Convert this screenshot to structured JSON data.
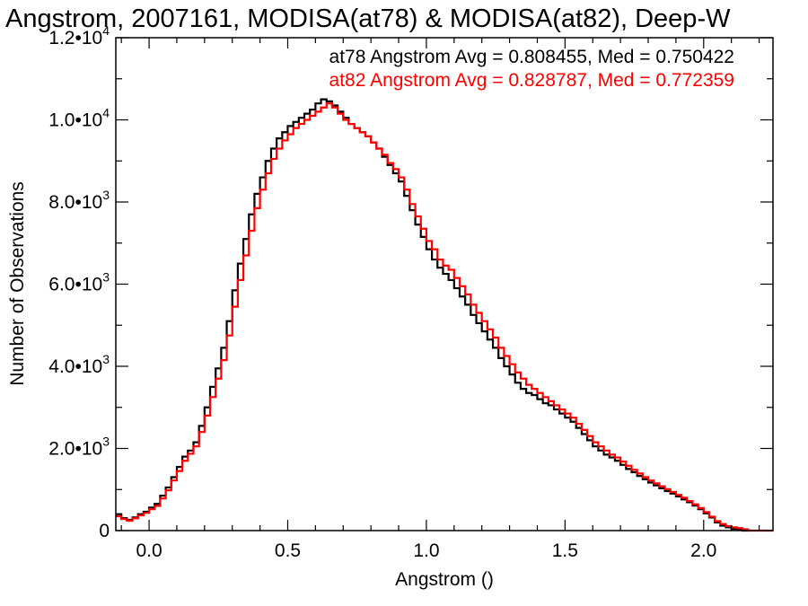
{
  "chart_data": {
    "type": "line",
    "step": true,
    "title": "Angstrom, 2007161, MODISA(at78) & MODISA(at82), Deep-W",
    "xlabel": "Angstrom ()",
    "ylabel": "Number of Observations",
    "xlim": [
      -0.12,
      2.25
    ],
    "ylim": [
      0,
      12000
    ],
    "grid": false,
    "legend_position": "top-right",
    "x_ticks": [
      {
        "value": 0.0,
        "label": "0.0"
      },
      {
        "value": 0.5,
        "label": "0.5"
      },
      {
        "value": 1.0,
        "label": "1.0"
      },
      {
        "value": 1.5,
        "label": "1.5"
      },
      {
        "value": 2.0,
        "label": "2.0"
      }
    ],
    "y_ticks": [
      {
        "value": 0,
        "mantissa": "0",
        "exponent": ""
      },
      {
        "value": 2000,
        "mantissa": "2.0•10",
        "exponent": "3"
      },
      {
        "value": 4000,
        "mantissa": "4.0•10",
        "exponent": "3"
      },
      {
        "value": 6000,
        "mantissa": "6.0•10",
        "exponent": "3"
      },
      {
        "value": 8000,
        "mantissa": "8.0•10",
        "exponent": "3"
      },
      {
        "value": 10000,
        "mantissa": "1.0•10",
        "exponent": "4"
      },
      {
        "value": 12000,
        "mantissa": "1.2•10",
        "exponent": "4"
      }
    ],
    "series": [
      {
        "color": "#000000",
        "label": "at78 Angstrom Avg = 0.808455, Med = 0.750422",
        "points": [
          [
            -0.12,
            400
          ],
          [
            -0.1,
            300
          ],
          [
            -0.08,
            260
          ],
          [
            -0.06,
            320
          ],
          [
            -0.04,
            400
          ],
          [
            -0.02,
            460
          ],
          [
            0.0,
            560
          ],
          [
            0.02,
            650
          ],
          [
            0.04,
            850
          ],
          [
            0.06,
            1050
          ],
          [
            0.08,
            1300
          ],
          [
            0.1,
            1550
          ],
          [
            0.12,
            1800
          ],
          [
            0.14,
            1950
          ],
          [
            0.16,
            2150
          ],
          [
            0.18,
            2550
          ],
          [
            0.2,
            3000
          ],
          [
            0.22,
            3500
          ],
          [
            0.24,
            3950
          ],
          [
            0.26,
            4450
          ],
          [
            0.28,
            5100
          ],
          [
            0.3,
            5850
          ],
          [
            0.32,
            6500
          ],
          [
            0.34,
            7100
          ],
          [
            0.36,
            7700
          ],
          [
            0.38,
            8200
          ],
          [
            0.4,
            8600
          ],
          [
            0.42,
            9000
          ],
          [
            0.44,
            9300
          ],
          [
            0.46,
            9550
          ],
          [
            0.48,
            9700
          ],
          [
            0.5,
            9850
          ],
          [
            0.52,
            9950
          ],
          [
            0.54,
            10050
          ],
          [
            0.56,
            10150
          ],
          [
            0.58,
            10250
          ],
          [
            0.6,
            10400
          ],
          [
            0.62,
            10500
          ],
          [
            0.64,
            10450
          ],
          [
            0.66,
            10350
          ],
          [
            0.68,
            10200
          ],
          [
            0.7,
            10050
          ],
          [
            0.72,
            9900
          ],
          [
            0.74,
            9800
          ],
          [
            0.76,
            9700
          ],
          [
            0.78,
            9600
          ],
          [
            0.8,
            9450
          ],
          [
            0.82,
            9300
          ],
          [
            0.84,
            9100
          ],
          [
            0.86,
            8900
          ],
          [
            0.88,
            8700
          ],
          [
            0.9,
            8500
          ],
          [
            0.92,
            8150
          ],
          [
            0.94,
            7800
          ],
          [
            0.96,
            7450
          ],
          [
            0.98,
            7150
          ],
          [
            1.0,
            6850
          ],
          [
            1.02,
            6600
          ],
          [
            1.04,
            6400
          ],
          [
            1.06,
            6250
          ],
          [
            1.08,
            6100
          ],
          [
            1.1,
            5900
          ],
          [
            1.12,
            5700
          ],
          [
            1.14,
            5500
          ],
          [
            1.16,
            5250
          ],
          [
            1.18,
            5050
          ],
          [
            1.2,
            4850
          ],
          [
            1.22,
            4650
          ],
          [
            1.24,
            4450
          ],
          [
            1.26,
            4200
          ],
          [
            1.28,
            4000
          ],
          [
            1.3,
            3800
          ],
          [
            1.32,
            3600
          ],
          [
            1.34,
            3450
          ],
          [
            1.36,
            3350
          ],
          [
            1.38,
            3300
          ],
          [
            1.4,
            3200
          ],
          [
            1.42,
            3100
          ],
          [
            1.44,
            3050
          ],
          [
            1.46,
            2950
          ],
          [
            1.48,
            2850
          ],
          [
            1.5,
            2750
          ],
          [
            1.52,
            2650
          ],
          [
            1.54,
            2500
          ],
          [
            1.56,
            2350
          ],
          [
            1.58,
            2200
          ],
          [
            1.6,
            2050
          ],
          [
            1.62,
            1950
          ],
          [
            1.64,
            1850
          ],
          [
            1.66,
            1780
          ],
          [
            1.68,
            1700
          ],
          [
            1.7,
            1600
          ],
          [
            1.72,
            1500
          ],
          [
            1.74,
            1420
          ],
          [
            1.76,
            1330
          ],
          [
            1.78,
            1250
          ],
          [
            1.8,
            1170
          ],
          [
            1.82,
            1100
          ],
          [
            1.84,
            1030
          ],
          [
            1.86,
            960
          ],
          [
            1.88,
            900
          ],
          [
            1.9,
            830
          ],
          [
            1.92,
            760
          ],
          [
            1.94,
            690
          ],
          [
            1.96,
            610
          ],
          [
            1.98,
            520
          ],
          [
            2.0,
            420
          ],
          [
            2.02,
            320
          ],
          [
            2.04,
            200
          ],
          [
            2.06,
            120
          ],
          [
            2.08,
            80
          ],
          [
            2.1,
            40
          ],
          [
            2.12,
            20
          ],
          [
            2.14,
            0
          ],
          [
            2.16,
            0
          ]
        ]
      },
      {
        "color": "#ff0000",
        "label": "at82 Angstrom Avg = 0.828787, Med = 0.772359",
        "points": [
          [
            -0.12,
            350
          ],
          [
            -0.1,
            280
          ],
          [
            -0.08,
            240
          ],
          [
            -0.06,
            300
          ],
          [
            -0.04,
            370
          ],
          [
            -0.02,
            430
          ],
          [
            0.0,
            520
          ],
          [
            0.02,
            600
          ],
          [
            0.04,
            780
          ],
          [
            0.06,
            980
          ],
          [
            0.08,
            1220
          ],
          [
            0.1,
            1450
          ],
          [
            0.12,
            1700
          ],
          [
            0.14,
            1870
          ],
          [
            0.16,
            2050
          ],
          [
            0.18,
            2400
          ],
          [
            0.2,
            2800
          ],
          [
            0.22,
            3250
          ],
          [
            0.24,
            3700
          ],
          [
            0.26,
            4150
          ],
          [
            0.28,
            4750
          ],
          [
            0.3,
            5450
          ],
          [
            0.32,
            6100
          ],
          [
            0.34,
            6700
          ],
          [
            0.36,
            7300
          ],
          [
            0.38,
            7850
          ],
          [
            0.4,
            8300
          ],
          [
            0.42,
            8700
          ],
          [
            0.44,
            9050
          ],
          [
            0.46,
            9300
          ],
          [
            0.48,
            9500
          ],
          [
            0.5,
            9650
          ],
          [
            0.52,
            9800
          ],
          [
            0.54,
            9900
          ],
          [
            0.56,
            10000
          ],
          [
            0.58,
            10100
          ],
          [
            0.6,
            10200
          ],
          [
            0.62,
            10300
          ],
          [
            0.64,
            10400
          ],
          [
            0.66,
            10300
          ],
          [
            0.68,
            10150
          ],
          [
            0.7,
            10000
          ],
          [
            0.72,
            9900
          ],
          [
            0.74,
            9800
          ],
          [
            0.76,
            9700
          ],
          [
            0.78,
            9600
          ],
          [
            0.8,
            9450
          ],
          [
            0.82,
            9300
          ],
          [
            0.84,
            9150
          ],
          [
            0.86,
            8950
          ],
          [
            0.88,
            8800
          ],
          [
            0.9,
            8600
          ],
          [
            0.92,
            8300
          ],
          [
            0.94,
            7950
          ],
          [
            0.96,
            7650
          ],
          [
            0.98,
            7350
          ],
          [
            1.0,
            7050
          ],
          [
            1.02,
            6850
          ],
          [
            1.04,
            6600
          ],
          [
            1.06,
            6450
          ],
          [
            1.08,
            6350
          ],
          [
            1.1,
            6150
          ],
          [
            1.12,
            5950
          ],
          [
            1.14,
            5750
          ],
          [
            1.16,
            5500
          ],
          [
            1.18,
            5300
          ],
          [
            1.2,
            5100
          ],
          [
            1.22,
            4900
          ],
          [
            1.24,
            4700
          ],
          [
            1.26,
            4450
          ],
          [
            1.28,
            4250
          ],
          [
            1.3,
            4050
          ],
          [
            1.32,
            3850
          ],
          [
            1.34,
            3700
          ],
          [
            1.36,
            3550
          ],
          [
            1.38,
            3450
          ],
          [
            1.4,
            3350
          ],
          [
            1.42,
            3250
          ],
          [
            1.44,
            3150
          ],
          [
            1.46,
            3050
          ],
          [
            1.48,
            2950
          ],
          [
            1.5,
            2850
          ],
          [
            1.52,
            2750
          ],
          [
            1.54,
            2600
          ],
          [
            1.56,
            2450
          ],
          [
            1.58,
            2300
          ],
          [
            1.6,
            2150
          ],
          [
            1.62,
            2050
          ],
          [
            1.64,
            1950
          ],
          [
            1.66,
            1850
          ],
          [
            1.68,
            1780
          ],
          [
            1.7,
            1680
          ],
          [
            1.72,
            1580
          ],
          [
            1.74,
            1480
          ],
          [
            1.76,
            1390
          ],
          [
            1.78,
            1300
          ],
          [
            1.8,
            1220
          ],
          [
            1.82,
            1150
          ],
          [
            1.84,
            1080
          ],
          [
            1.86,
            1010
          ],
          [
            1.88,
            940
          ],
          [
            1.9,
            870
          ],
          [
            1.92,
            800
          ],
          [
            1.94,
            720
          ],
          [
            1.96,
            640
          ],
          [
            1.98,
            550
          ],
          [
            2.0,
            450
          ],
          [
            2.02,
            340
          ],
          [
            2.04,
            230
          ],
          [
            2.06,
            160
          ],
          [
            2.08,
            110
          ],
          [
            2.1,
            80
          ],
          [
            2.12,
            60
          ],
          [
            2.14,
            30
          ],
          [
            2.16,
            0
          ],
          [
            2.25,
            0
          ]
        ]
      }
    ]
  }
}
